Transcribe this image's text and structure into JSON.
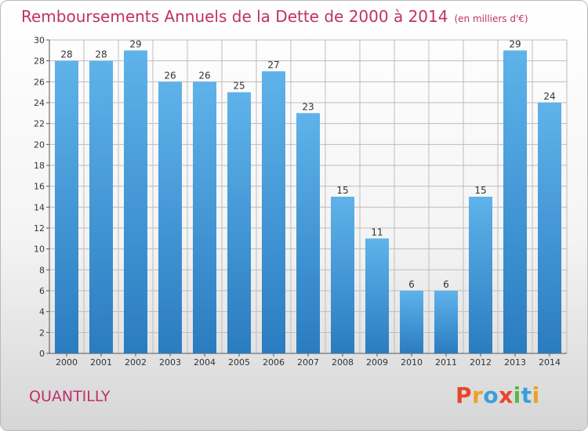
{
  "header": {
    "title": "Remboursements Annuels de la Dette de 2000 à 2014",
    "unit": "(en milliers d'€)"
  },
  "footer": {
    "commune": "QUANTILLY",
    "brand": "Proxiti"
  },
  "colors": {
    "title": "#c0306a",
    "bar_top": "#5fb3ea",
    "bar_bottom": "#2a7cc0",
    "grid": "#bdbdbd",
    "brand_letters": [
      "#e8462c",
      "#f0a020",
      "#3a9fd8",
      "#e8462c",
      "#56b847",
      "#3a9fd8",
      "#f0a020"
    ]
  },
  "chart_data": {
    "type": "bar",
    "title": "Remboursements Annuels de la Dette de 2000 à 2014",
    "categories": [
      "2000",
      "2001",
      "2002",
      "2003",
      "2004",
      "2005",
      "2006",
      "2007",
      "2008",
      "2009",
      "2010",
      "2011",
      "2012",
      "2013",
      "2014"
    ],
    "values": [
      28,
      28,
      29,
      26,
      26,
      25,
      27,
      23,
      15,
      11,
      6,
      6,
      15,
      29,
      24
    ],
    "ylim": [
      0,
      30
    ],
    "yticks": [
      0,
      2,
      4,
      6,
      8,
      10,
      12,
      14,
      16,
      18,
      20,
      22,
      24,
      26,
      28,
      30
    ],
    "grid": true,
    "data_labels": true
  }
}
